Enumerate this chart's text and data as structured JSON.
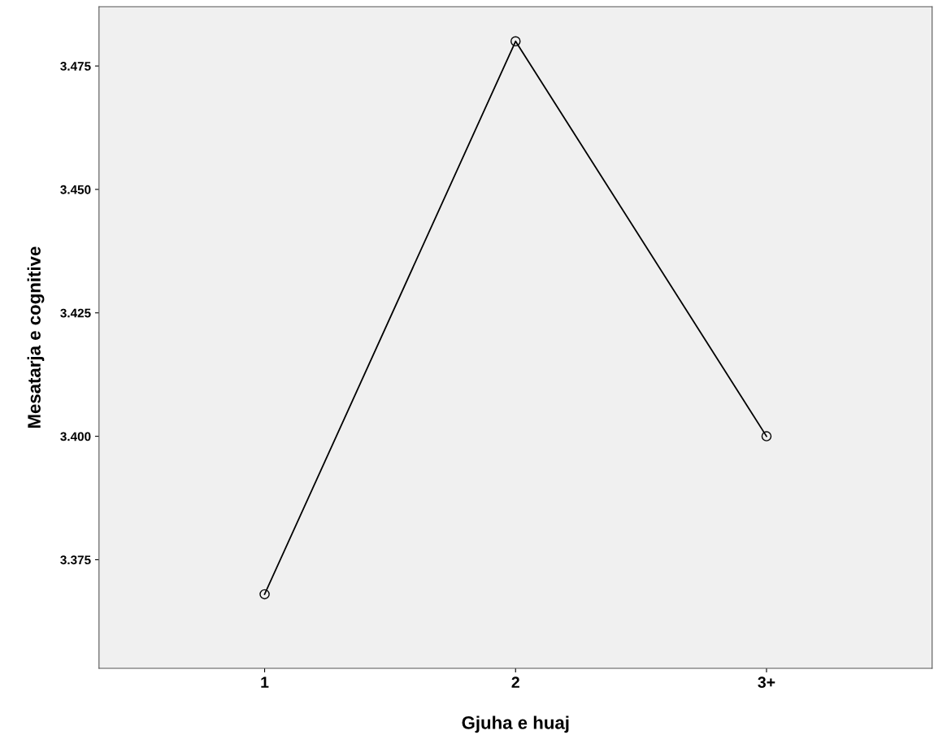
{
  "chart_data": {
    "type": "line",
    "xlabel": "Gjuha e huaj",
    "ylabel": "Mesatarja e cognitive",
    "categories": [
      "1",
      "2",
      "3+"
    ],
    "series": [
      {
        "color": "#000000",
        "values": [
          3.368,
          3.48,
          3.4
        ]
      }
    ],
    "ylim": [
      3.353,
      3.487
    ],
    "yticks": [
      {
        "value": 3.375,
        "label": "3.375"
      },
      {
        "value": 3.4,
        "label": "3.400"
      },
      {
        "value": 3.425,
        "label": "3.425"
      },
      {
        "value": 3.45,
        "label": "3.450"
      },
      {
        "value": 3.475,
        "label": "3.475"
      }
    ],
    "grid": false,
    "marker": "circle",
    "line_style": "solid"
  }
}
